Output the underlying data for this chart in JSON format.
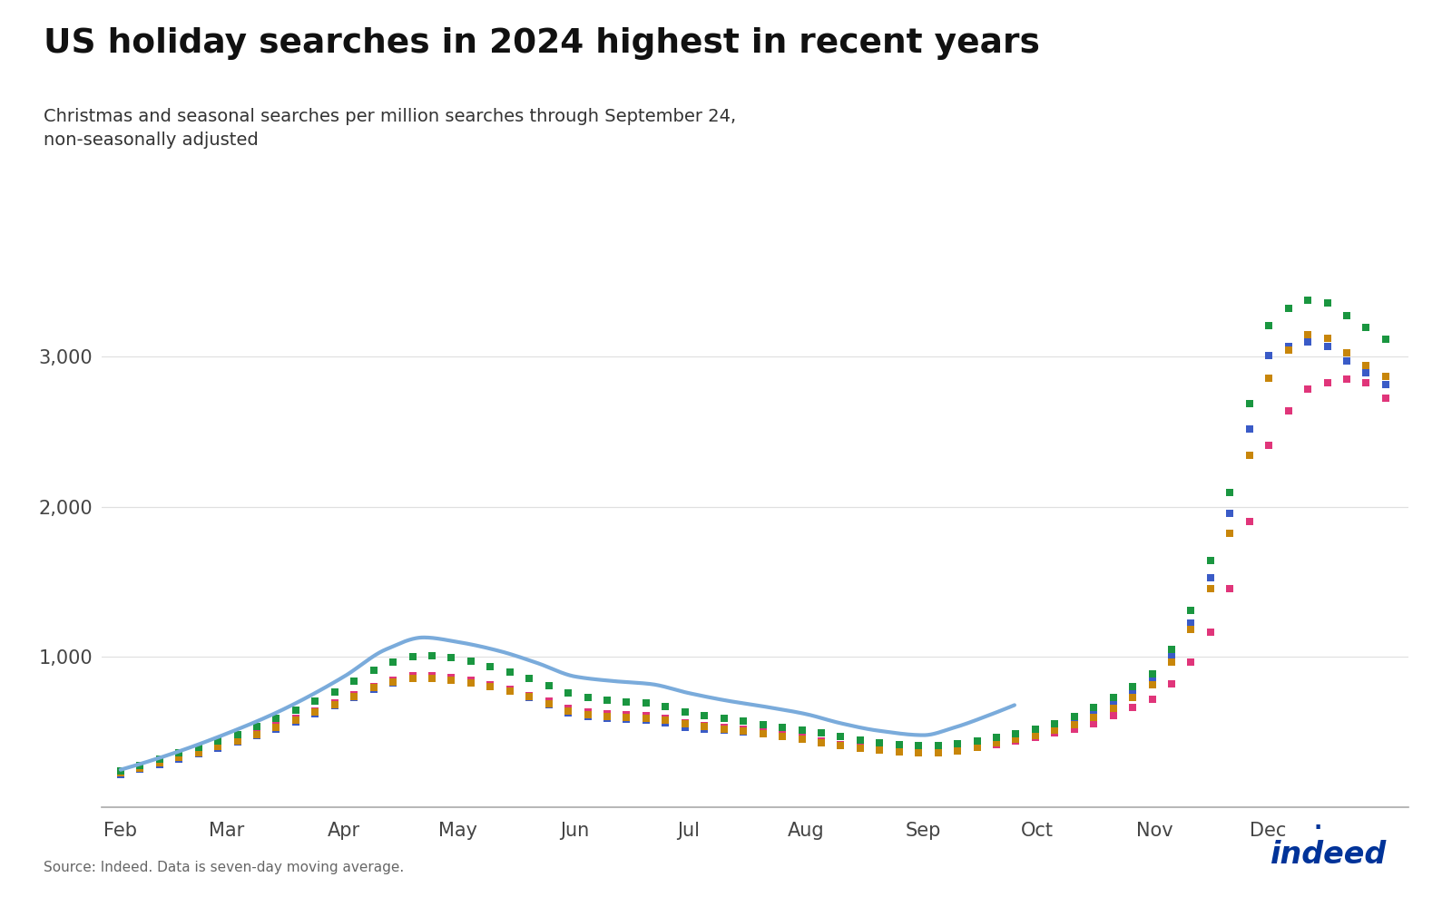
{
  "title": "US holiday searches in 2024 highest in recent years",
  "subtitle": "Christmas and seasonal searches per million searches through September 24,\nnon-seasonally adjusted",
  "source": "Source: Indeed. Data is seven-day moving average.",
  "background_color": "#ffffff",
  "series": {
    "2019": {
      "color": "#3a5bc7",
      "zorder": 3
    },
    "2021": {
      "color": "#e0357a",
      "zorder": 3
    },
    "2022": {
      "color": "#c8860a",
      "zorder": 3
    },
    "2023": {
      "color": "#1a9640",
      "zorder": 3
    },
    "2024": {
      "color": "#7aabdb",
      "zorder": 4
    }
  },
  "yticks": [
    1000,
    2000,
    3000
  ],
  "months": [
    "Feb",
    "Mar",
    "Apr",
    "May",
    "Jun",
    "Jul",
    "Aug",
    "Sep",
    "Oct",
    "Nov",
    "Dec"
  ],
  "month_days": [
    0,
    28,
    59,
    89,
    120,
    150,
    181,
    212,
    242,
    273,
    303
  ],
  "total_days": 335,
  "sep24_day": 236,
  "data_2019_x": [
    0,
    14,
    28,
    42,
    59,
    70,
    80,
    89,
    100,
    110,
    120,
    130,
    140,
    150,
    160,
    170,
    181,
    190,
    200,
    212,
    220,
    230,
    242,
    255,
    265,
    273,
    285,
    295,
    303,
    315,
    325,
    335
  ],
  "data_2019_y": [
    220,
    310,
    410,
    530,
    700,
    810,
    870,
    840,
    790,
    710,
    620,
    590,
    580,
    530,
    510,
    490,
    460,
    420,
    390,
    380,
    390,
    430,
    490,
    600,
    730,
    870,
    1350,
    2150,
    3000,
    3100,
    2950,
    2800
  ],
  "data_2021_x": [
    0,
    14,
    28,
    42,
    59,
    70,
    80,
    89,
    100,
    110,
    120,
    130,
    140,
    150,
    160,
    170,
    181,
    190,
    200,
    212,
    220,
    230,
    242,
    255,
    265,
    273,
    285,
    295,
    303,
    315,
    325,
    335
  ],
  "data_2021_y": [
    240,
    330,
    430,
    550,
    720,
    830,
    880,
    860,
    800,
    730,
    650,
    620,
    610,
    560,
    530,
    500,
    460,
    420,
    390,
    370,
    380,
    410,
    470,
    540,
    640,
    730,
    1050,
    1600,
    2400,
    2800,
    2850,
    2700
  ],
  "data_2022_x": [
    0,
    14,
    28,
    42,
    59,
    70,
    80,
    89,
    100,
    110,
    120,
    130,
    140,
    150,
    160,
    170,
    181,
    190,
    200,
    212,
    220,
    230,
    242,
    255,
    265,
    273,
    285,
    295,
    303,
    315,
    325,
    335
  ],
  "data_2022_y": [
    230,
    320,
    420,
    540,
    710,
    820,
    860,
    840,
    790,
    720,
    630,
    600,
    590,
    550,
    520,
    490,
    450,
    410,
    380,
    360,
    370,
    420,
    480,
    580,
    700,
    830,
    1300,
    2000,
    2850,
    3150,
    3000,
    2850
  ],
  "data_2023_x": [
    0,
    14,
    28,
    42,
    59,
    70,
    80,
    89,
    100,
    110,
    120,
    130,
    140,
    150,
    160,
    170,
    181,
    190,
    200,
    212,
    220,
    230,
    242,
    255,
    265,
    273,
    285,
    295,
    303,
    315,
    325,
    335
  ],
  "data_2023_y": [
    240,
    350,
    460,
    600,
    800,
    950,
    1010,
    990,
    920,
    840,
    750,
    710,
    690,
    630,
    590,
    550,
    510,
    470,
    430,
    410,
    420,
    460,
    520,
    640,
    770,
    900,
    1450,
    2300,
    3200,
    3380,
    3250,
    3100
  ],
  "data_2024_x": [
    0,
    14,
    28,
    42,
    59,
    70,
    80,
    89,
    100,
    110,
    120,
    130,
    140,
    150,
    160,
    170,
    181,
    190,
    200,
    212,
    220,
    230,
    236
  ],
  "data_2024_y": [
    250,
    360,
    490,
    640,
    870,
    1050,
    1130,
    1100,
    1040,
    960,
    870,
    840,
    820,
    760,
    710,
    670,
    620,
    560,
    510,
    480,
    530,
    620,
    680
  ]
}
